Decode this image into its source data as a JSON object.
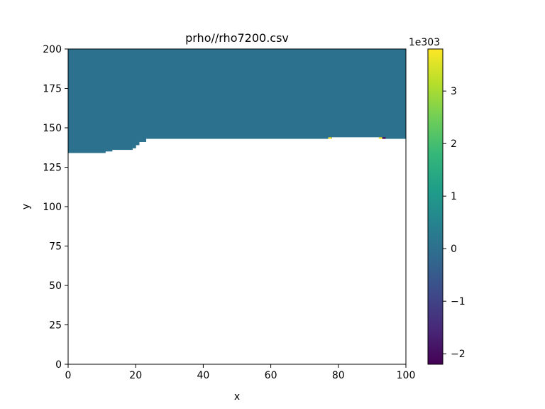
{
  "chart_data": {
    "type": "heatmap",
    "title": "prho//rho7200.csv",
    "xlabel": "x",
    "ylabel": "y",
    "xlim": [
      0,
      100
    ],
    "ylim": [
      0,
      200
    ],
    "xticks": [
      0,
      20,
      40,
      60,
      80,
      100
    ],
    "yticks": [
      0,
      25,
      50,
      75,
      100,
      125,
      150,
      175,
      200
    ],
    "grid": false,
    "field": {
      "fill_value": 0,
      "fill_color": "#2c728e",
      "lower_boundary_y": [
        {
          "x0": 0,
          "x1": 11,
          "y": 134
        },
        {
          "x0": 11,
          "x1": 13,
          "y": 135
        },
        {
          "x0": 13,
          "x1": 19,
          "y": 136
        },
        {
          "x0": 19,
          "x1": 20,
          "y": 137
        },
        {
          "x0": 20,
          "x1": 21,
          "y": 139
        },
        {
          "x0": 21,
          "x1": 23,
          "y": 141
        },
        {
          "x0": 23,
          "x1": 78,
          "y": 143
        },
        {
          "x0": 78,
          "x1": 92,
          "y": 144
        },
        {
          "x0": 92,
          "x1": 100,
          "y": 143
        }
      ],
      "anomalies": [
        {
          "x0": 77,
          "x1": 78,
          "y0": 143,
          "y1": 144,
          "color": "#fde725"
        },
        {
          "x0": 92,
          "x1": 93,
          "y0": 143,
          "y1": 144,
          "color": "#fde725"
        },
        {
          "x0": 93,
          "x1": 94,
          "y0": 143,
          "y1": 144,
          "color": "#440154"
        }
      ]
    },
    "colorbar": {
      "colormap": "viridis",
      "min": -2.2,
      "max": 3.8,
      "ticks": [
        -2,
        -1,
        0,
        1,
        2,
        3
      ],
      "tick_labels": [
        "−2",
        "−1",
        "0",
        "1",
        "2",
        "3"
      ],
      "offset_label": "1e303",
      "colors": [
        "#440154",
        "#482878",
        "#3e4989",
        "#31688e",
        "#26828e",
        "#1f9e89",
        "#35b779",
        "#6ece58",
        "#b5de2b",
        "#fde725"
      ]
    }
  }
}
